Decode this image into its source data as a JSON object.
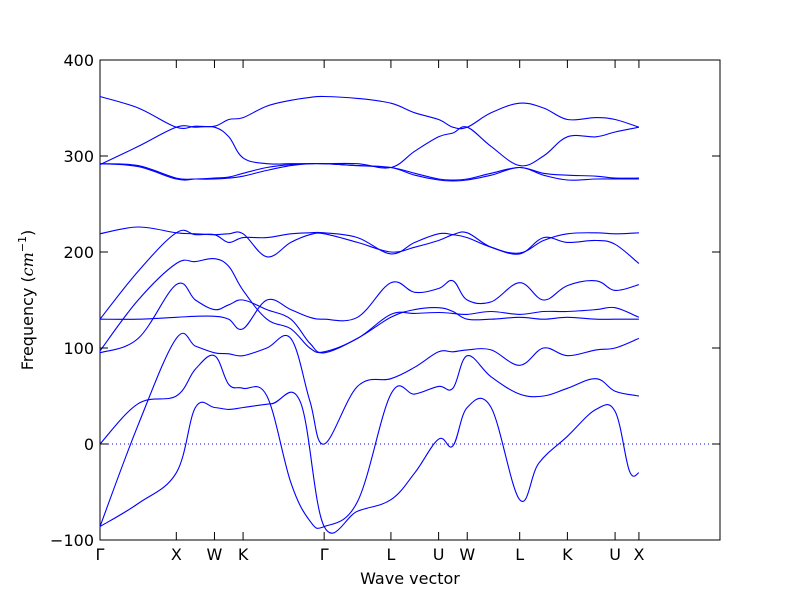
{
  "chart_data": {
    "type": "line",
    "xlabel": "Wave vector",
    "ylabel": {
      "prefix": "Frequency (",
      "unit": "cm",
      "exponent": "−1",
      "suffix": ")"
    },
    "ylim": [
      -100,
      400
    ],
    "yticks": [
      -100,
      0,
      100,
      200,
      300,
      400
    ],
    "xlim": [
      0,
      6.5
    ],
    "colors": {
      "bands": "#0000ff",
      "zero_line": "#0000ff"
    },
    "grid": false,
    "zero_line_style": "dotted",
    "high_symmetry_points": [
      {
        "label": "Γ",
        "x": 0.0
      },
      {
        "label": "X",
        "x": 0.8
      },
      {
        "label": "W",
        "x": 1.2
      },
      {
        "label": "K",
        "x": 1.5
      },
      {
        "label": "Γ",
        "x": 2.35
      },
      {
        "label": "L",
        "x": 3.05
      },
      {
        "label": "U",
        "x": 3.55
      },
      {
        "label": "W",
        "x": 3.85
      },
      {
        "label": "L",
        "x": 4.4
      },
      {
        "label": "K",
        "x": 4.9
      },
      {
        "label": "U",
        "x": 5.4
      },
      {
        "label": "X",
        "x": 5.65
      }
    ],
    "series": [
      {
        "x": [
          0,
          0.4,
          0.8,
          1.0,
          1.2,
          1.35,
          1.5,
          1.8,
          2.1,
          2.35,
          2.7,
          3.05,
          3.3,
          3.55,
          3.7,
          3.85,
          4.1,
          4.4,
          4.6,
          4.9,
          5.2,
          5.4,
          5.55,
          5.65
        ],
        "y": [
          -86,
          -62,
          -30,
          38,
          38,
          36,
          38,
          42,
          44,
          -86,
          -70,
          -58,
          -30,
          5,
          -2,
          38,
          38,
          -58,
          -20,
          8,
          36,
          34,
          -28,
          -30
        ]
      },
      {
        "x": [
          0,
          0.4,
          0.8,
          1.0,
          1.2,
          1.35,
          1.5,
          1.75,
          2.0,
          2.2,
          2.35,
          2.7,
          3.05,
          3.3,
          3.55,
          3.7,
          3.85,
          4.1,
          4.4,
          4.65,
          4.9,
          5.2,
          5.4,
          5.65
        ],
        "y": [
          0,
          42,
          50,
          78,
          92,
          62,
          58,
          50,
          -40,
          -80,
          -86,
          -60,
          52,
          52,
          60,
          58,
          92,
          70,
          52,
          50,
          58,
          68,
          55,
          50
        ]
      },
      {
        "x": [
          0,
          0.4,
          0.8,
          1.0,
          1.2,
          1.35,
          1.5,
          1.75,
          2.0,
          2.2,
          2.35,
          2.7,
          3.05,
          3.3,
          3.55,
          3.7,
          3.85,
          4.1,
          4.4,
          4.65,
          4.9,
          5.2,
          5.4,
          5.65
        ],
        "y": [
          -86,
          20,
          110,
          102,
          95,
          94,
          92,
          100,
          110,
          45,
          0,
          60,
          68,
          80,
          96,
          96,
          98,
          98,
          82,
          100,
          92,
          98,
          100,
          110
        ]
      },
      {
        "x": [
          0,
          0.4,
          0.8,
          1.0,
          1.2,
          1.35,
          1.5,
          1.75,
          2.0,
          2.2,
          2.35,
          2.7,
          3.05,
          3.3,
          3.55,
          3.7,
          3.85,
          4.1,
          4.4,
          4.65,
          4.9,
          5.2,
          5.4,
          5.65
        ],
        "y": [
          95,
          110,
          166,
          150,
          140,
          145,
          150,
          140,
          130,
          105,
          95,
          110,
          132,
          140,
          142,
          138,
          130,
          130,
          132,
          130,
          132,
          130,
          130,
          130
        ]
      },
      {
        "x": [
          0,
          0.4,
          0.8,
          1.0,
          1.2,
          1.35,
          1.5,
          1.75,
          2.0,
          2.2,
          2.35,
          2.7,
          3.05,
          3.3,
          3.55,
          3.7,
          3.85,
          4.1,
          4.4,
          4.65,
          4.9,
          5.2,
          5.4,
          5.65
        ],
        "y": [
          97,
          150,
          188,
          190,
          193,
          185,
          160,
          130,
          120,
          100,
          96,
          110,
          135,
          136,
          137,
          136,
          135,
          138,
          135,
          138,
          138,
          140,
          142,
          132
        ]
      },
      {
        "x": [
          0,
          0.4,
          0.8,
          1.0,
          1.2,
          1.35,
          1.5,
          1.75,
          2.0,
          2.2,
          2.35,
          2.7,
          3.05,
          3.3,
          3.55,
          3.7,
          3.85,
          4.1,
          4.4,
          4.65,
          4.9,
          5.2,
          5.4,
          5.65
        ],
        "y": [
          130,
          130,
          132,
          133,
          133,
          130,
          120,
          150,
          140,
          132,
          130,
          132,
          168,
          158,
          162,
          170,
          150,
          148,
          168,
          150,
          165,
          170,
          160,
          166
        ]
      },
      {
        "x": [
          0,
          0.4,
          0.8,
          1.0,
          1.2,
          1.35,
          1.5,
          1.75,
          2.0,
          2.2,
          2.35,
          2.7,
          3.05,
          3.3,
          3.55,
          3.7,
          3.85,
          4.1,
          4.4,
          4.65,
          4.9,
          5.2,
          5.4,
          5.65
        ],
        "y": [
          130,
          180,
          220,
          218,
          218,
          210,
          215,
          215,
          219,
          220,
          220,
          215,
          198,
          210,
          219,
          218,
          215,
          205,
          198,
          215,
          210,
          212,
          208,
          188
        ]
      },
      {
        "x": [
          0,
          0.4,
          0.8,
          1.0,
          1.2,
          1.35,
          1.5,
          1.75,
          2.0,
          2.2,
          2.35,
          2.7,
          3.05,
          3.3,
          3.55,
          3.7,
          3.85,
          4.1,
          4.4,
          4.65,
          4.9,
          5.2,
          5.4,
          5.65
        ],
        "y": [
          219,
          226,
          220,
          219,
          218,
          219,
          219,
          195,
          210,
          218,
          219,
          210,
          200,
          205,
          212,
          218,
          220,
          205,
          199,
          212,
          219,
          220,
          219,
          220
        ]
      },
      {
        "x": [
          0,
          0.4,
          0.8,
          1.0,
          1.2,
          1.35,
          1.5,
          1.75,
          2.0,
          2.2,
          2.35,
          2.7,
          3.05,
          3.3,
          3.55,
          3.7,
          3.85,
          4.1,
          4.4,
          4.65,
          4.9,
          5.2,
          5.4,
          5.65
        ],
        "y": [
          292,
          290,
          277,
          276,
          276,
          277,
          279,
          285,
          290,
          292,
          292,
          290,
          288,
          280,
          275,
          274,
          275,
          280,
          288,
          280,
          275,
          276,
          276,
          276
        ]
      },
      {
        "x": [
          0,
          0.4,
          0.8,
          1.0,
          1.2,
          1.35,
          1.5,
          1.75,
          2.0,
          2.2,
          2.35,
          2.7,
          3.05,
          3.3,
          3.55,
          3.7,
          3.85,
          4.1,
          4.4,
          4.65,
          4.9,
          5.2,
          5.4,
          5.65
        ],
        "y": [
          292,
          289,
          276,
          276,
          277,
          278,
          282,
          288,
          291,
          292,
          292,
          290,
          288,
          282,
          276,
          275,
          276,
          282,
          288,
          282,
          280,
          279,
          277,
          277
        ]
      },
      {
        "x": [
          0,
          0.4,
          0.8,
          1.0,
          1.2,
          1.35,
          1.5,
          1.75,
          2.0,
          2.2,
          2.35,
          2.7,
          3.05,
          3.3,
          3.55,
          3.7,
          3.85,
          4.1,
          4.4,
          4.65,
          4.9,
          5.2,
          5.4,
          5.65
        ],
        "y": [
          291,
          310,
          330,
          330,
          330,
          320,
          298,
          292,
          292,
          292,
          292,
          292,
          288,
          305,
          320,
          324,
          330,
          310,
          290,
          300,
          320,
          320,
          325,
          330
        ]
      },
      {
        "x": [
          0,
          0.4,
          0.8,
          1.0,
          1.2,
          1.35,
          1.5,
          1.75,
          2.0,
          2.2,
          2.35,
          2.7,
          3.05,
          3.3,
          3.55,
          3.7,
          3.85,
          4.1,
          4.4,
          4.65,
          4.9,
          5.2,
          5.4,
          5.65
        ],
        "y": [
          362,
          350,
          330,
          331,
          331,
          338,
          340,
          352,
          358,
          361,
          362,
          360,
          355,
          345,
          338,
          330,
          330,
          345,
          355,
          350,
          338,
          340,
          338,
          330
        ]
      }
    ]
  }
}
